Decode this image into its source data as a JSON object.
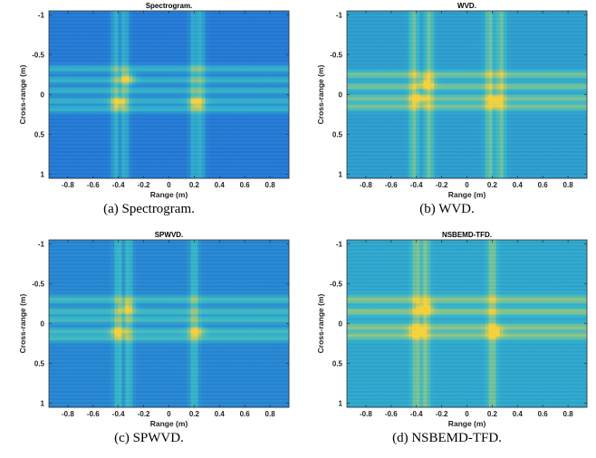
{
  "figure": {
    "colors": {
      "low": "#1f5fd8",
      "mid": "#35b7c9",
      "high": "#f5d23c",
      "axis": "#333333"
    }
  },
  "chart_data": [
    {
      "type": "heatmap",
      "title": "Spectrogram.",
      "caption": "(a)  Spectrogram.",
      "xlabel": "Range (m)",
      "ylabel": "Cross-range (m)",
      "xlim": [
        -0.95,
        0.95
      ],
      "ylim": [
        -1.05,
        1.05
      ],
      "y_reversed": true,
      "xticks": [
        "-0.8",
        "-0.6",
        "-0.4",
        "-0.2",
        "0",
        "0.2",
        "0.4",
        "0.6",
        "0.8"
      ],
      "yticks": [
        "-1",
        "-0.5",
        "0",
        "0.5",
        "1"
      ],
      "horizontal_bands": [
        -0.32,
        -0.18,
        -0.05,
        0.08,
        0.18
      ],
      "vertical_bands": [
        -0.42,
        -0.35,
        0.2,
        0.25
      ],
      "hotspots": [
        {
          "x": -0.33,
          "y": -0.2,
          "level": 1.0
        },
        {
          "x": -0.4,
          "y": 0.1,
          "level": 0.95
        },
        {
          "x": 0.22,
          "y": 0.1,
          "level": 0.9
        }
      ],
      "background": 0.15
    },
    {
      "type": "heatmap",
      "title": "WVD.",
      "caption": "(b)  WVD.",
      "xlabel": "Range (m)",
      "ylabel": "Cross-range (m)",
      "xlim": [
        -0.95,
        0.95
      ],
      "ylim": [
        -1.05,
        1.05
      ],
      "y_reversed": true,
      "xticks": [
        "-0.8",
        "-0.6",
        "-0.4",
        "-0.2",
        "0",
        "0.2",
        "0.4",
        "0.6",
        "0.8"
      ],
      "yticks": [
        "-1",
        "-0.5",
        "0",
        "0.5",
        "1"
      ],
      "horizontal_bands": [
        -0.25,
        -0.1,
        0.05,
        0.15
      ],
      "vertical_bands": [
        -0.42,
        -0.3,
        0.18,
        0.27
      ],
      "hotspots": [
        {
          "x": -0.32,
          "y": -0.15,
          "level": 0.95
        },
        {
          "x": -0.38,
          "y": 0.05,
          "level": 0.85
        },
        {
          "x": 0.22,
          "y": 0.08,
          "level": 0.85
        }
      ],
      "background": 0.35
    },
    {
      "type": "heatmap",
      "title": "SPWVD.",
      "caption": "(c)  SPWVD.",
      "xlabel": "Range (m)",
      "ylabel": "Cross-range (m)",
      "xlim": [
        -0.95,
        0.95
      ],
      "ylim": [
        -1.05,
        1.05
      ],
      "y_reversed": true,
      "xticks": [
        "-0.8",
        "-0.6",
        "-0.4",
        "-0.2",
        "0",
        "0.2",
        "0.4",
        "0.6",
        "0.8"
      ],
      "yticks": [
        "-1",
        "-0.5",
        "0",
        "0.5",
        "1"
      ],
      "horizontal_bands": [
        -0.3,
        -0.15,
        -0.05,
        0.1,
        0.18
      ],
      "vertical_bands": [
        -0.4,
        -0.32,
        0.2
      ],
      "hotspots": [
        {
          "x": -0.33,
          "y": -0.2,
          "level": 0.85
        },
        {
          "x": -0.4,
          "y": 0.1,
          "level": 0.9
        },
        {
          "x": 0.22,
          "y": 0.1,
          "level": 0.85
        }
      ],
      "background": 0.22
    },
    {
      "type": "heatmap",
      "title": "NSBEMD-TFD.",
      "caption": "(d)  NSBEMD-TFD.",
      "xlabel": "Range (m)",
      "ylabel": "Cross-range (m)",
      "xlim": [
        -0.95,
        0.95
      ],
      "ylim": [
        -1.05,
        1.05
      ],
      "y_reversed": true,
      "xticks": [
        "-0.8",
        "-0.6",
        "-0.4",
        "-0.2",
        "0",
        "0.2",
        "0.4",
        "0.6",
        "0.8"
      ],
      "yticks": [
        "-1",
        "-0.5",
        "0",
        "0.5",
        "1"
      ],
      "horizontal_bands": [
        -0.3,
        -0.15,
        0.05,
        0.15
      ],
      "vertical_bands": [
        -0.4,
        -0.33,
        0.2
      ],
      "hotspots": [
        {
          "x": -0.33,
          "y": -0.2,
          "level": 1.0
        },
        {
          "x": -0.4,
          "y": 0.1,
          "level": 0.95
        },
        {
          "x": 0.22,
          "y": 0.1,
          "level": 0.95
        }
      ],
      "background": 0.4
    }
  ]
}
